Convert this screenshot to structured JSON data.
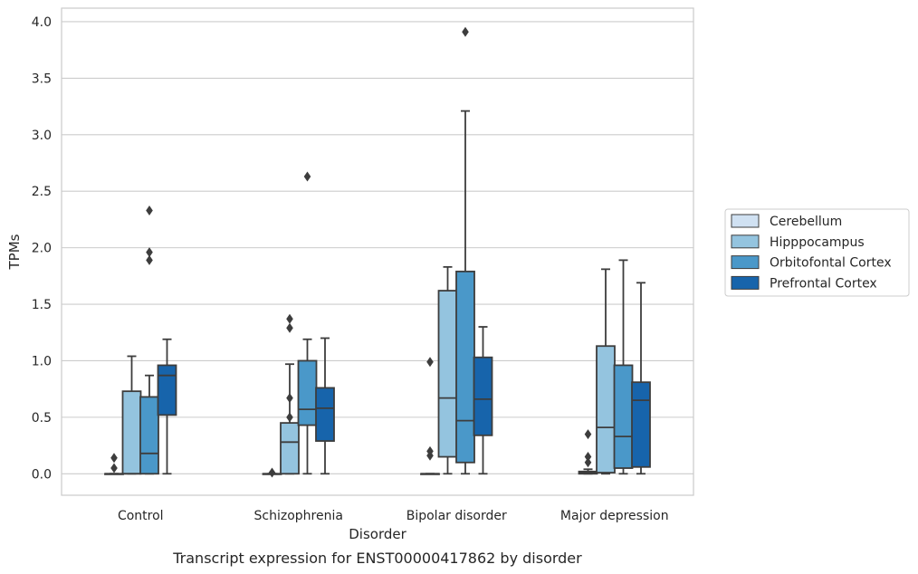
{
  "chart_data": {
    "type": "boxplot",
    "caption": "Transcript expression for ENST00000417862 by disorder",
    "xlabel": "Disorder",
    "ylabel": "TPMs",
    "ylim": [
      -0.19,
      4.12
    ],
    "yticks": [
      0.0,
      0.5,
      1.0,
      1.5,
      2.0,
      2.5,
      3.0,
      3.5,
      4.0
    ],
    "ytick_labels": [
      "0.0",
      "0.5",
      "1.0",
      "1.5",
      "2.0",
      "2.5",
      "3.0",
      "3.5",
      "4.0"
    ],
    "grid": true,
    "legend_position": "right",
    "categories": [
      "Control",
      "Schizophrenia",
      "Bipolar disorder",
      "Major depression"
    ],
    "series": [
      {
        "name": "Cerebellum",
        "color": "#d0e1f2",
        "boxes": [
          {
            "whislo": 0.0,
            "q1": 0.0,
            "med": 0.0,
            "q3": 0.0,
            "whishi": 0.0,
            "fliers": [
              0.05,
              0.14
            ]
          },
          {
            "whislo": 0.0,
            "q1": 0.0,
            "med": 0.0,
            "q3": 0.0,
            "whishi": 0.0,
            "fliers": [
              0.01
            ]
          },
          {
            "whislo": 0.0,
            "q1": 0.0,
            "med": 0.0,
            "q3": 0.0,
            "whishi": 0.0,
            "fliers": [
              0.16,
              0.2,
              0.99
            ]
          },
          {
            "whislo": 0.0,
            "q1": 0.0,
            "med": 0.01,
            "q3": 0.02,
            "whishi": 0.04,
            "fliers": [
              0.1,
              0.15,
              0.35
            ]
          }
        ]
      },
      {
        "name": "Hipppocampus",
        "color": "#94c4df",
        "boxes": [
          {
            "whislo": 0.0,
            "q1": 0.0,
            "med": 0.0,
            "q3": 0.73,
            "whishi": 1.04,
            "fliers": []
          },
          {
            "whislo": 0.0,
            "q1": 0.0,
            "med": 0.28,
            "q3": 0.45,
            "whishi": 0.97,
            "fliers": [
              0.5,
              0.67,
              1.29,
              1.37
            ]
          },
          {
            "whislo": 0.0,
            "q1": 0.15,
            "med": 0.67,
            "q3": 1.62,
            "whishi": 1.83,
            "fliers": []
          },
          {
            "whislo": 0.0,
            "q1": 0.01,
            "med": 0.41,
            "q3": 1.13,
            "whishi": 1.81,
            "fliers": []
          }
        ]
      },
      {
        "name": "Orbitofontal Cortex",
        "color": "#4a98c9",
        "boxes": [
          {
            "whislo": 0.0,
            "q1": 0.0,
            "med": 0.18,
            "q3": 0.68,
            "whishi": 0.87,
            "fliers": [
              1.89,
              1.96,
              2.33
            ]
          },
          {
            "whislo": 0.0,
            "q1": 0.43,
            "med": 0.57,
            "q3": 1.0,
            "whishi": 1.19,
            "fliers": [
              2.63
            ]
          },
          {
            "whislo": 0.0,
            "q1": 0.1,
            "med": 0.47,
            "q3": 1.79,
            "whishi": 3.21,
            "fliers": [
              3.91
            ]
          },
          {
            "whislo": 0.0,
            "q1": 0.05,
            "med": 0.33,
            "q3": 0.96,
            "whishi": 1.89,
            "fliers": []
          }
        ]
      },
      {
        "name": "Prefrontal Cortex",
        "color": "#1764ab",
        "boxes": [
          {
            "whislo": 0.0,
            "q1": 0.52,
            "med": 0.87,
            "q3": 0.96,
            "whishi": 1.19,
            "fliers": []
          },
          {
            "whislo": 0.0,
            "q1": 0.29,
            "med": 0.58,
            "q3": 0.76,
            "whishi": 1.2,
            "fliers": []
          },
          {
            "whislo": 0.0,
            "q1": 0.34,
            "med": 0.66,
            "q3": 1.03,
            "whishi": 1.3,
            "fliers": []
          },
          {
            "whislo": 0.0,
            "q1": 0.06,
            "med": 0.65,
            "q3": 0.81,
            "whishi": 1.69,
            "fliers": []
          }
        ]
      }
    ]
  }
}
